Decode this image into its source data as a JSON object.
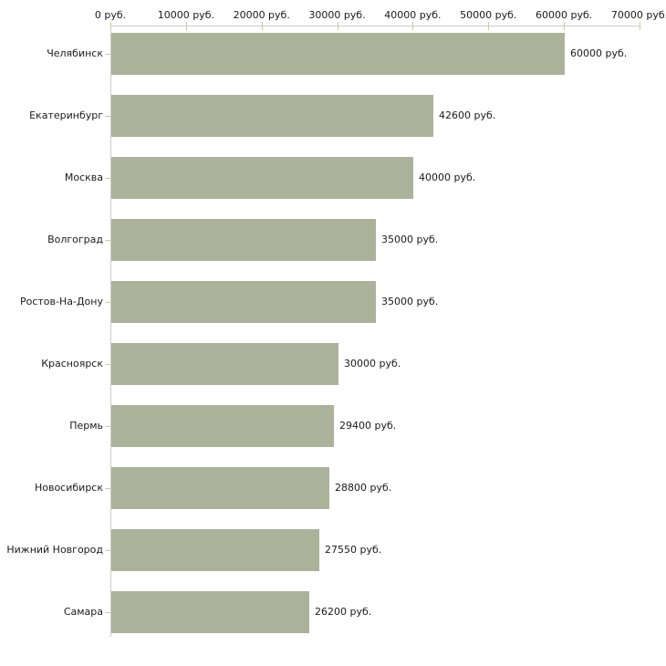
{
  "chart_data": {
    "type": "bar",
    "orientation": "horizontal",
    "title": "",
    "unit": "руб.",
    "categories": [
      "Челябинск",
      "Екатеринбург",
      "Москва",
      "Волгоград",
      "Ростов-На-Дону",
      "Красноярск",
      "Пермь",
      "Новосибирск",
      "Нижний Новгород",
      "Самара"
    ],
    "values": [
      60000,
      42600,
      40000,
      35000,
      35000,
      30000,
      29400,
      28800,
      27550,
      26200
    ],
    "data_labels": [
      "60000 руб.",
      "42600 руб.",
      "40000 руб.",
      "35000 руб.",
      "35000 руб.",
      "30000 руб.",
      "29400 руб.",
      "28800 руб.",
      "27550 руб.",
      "26200 руб."
    ],
    "x_axis": {
      "position": "top",
      "min": 0,
      "max": 70000,
      "tick_values": [
        0,
        10000,
        20000,
        30000,
        40000,
        50000,
        60000,
        70000
      ],
      "tick_labels": [
        "0 руб.",
        "10000 руб.",
        "20000 руб.",
        "30000 руб.",
        "40000 руб.",
        "50000 руб.",
        "60000 руб.",
        "70000 руб."
      ]
    },
    "grid": false,
    "legend": false,
    "colors": {
      "bar_fill": "#acb29a",
      "axis_line": "#cccccc",
      "tick_mark": "#c9c9a0",
      "text": "#1a1a1a",
      "background": "#ffffff"
    }
  }
}
